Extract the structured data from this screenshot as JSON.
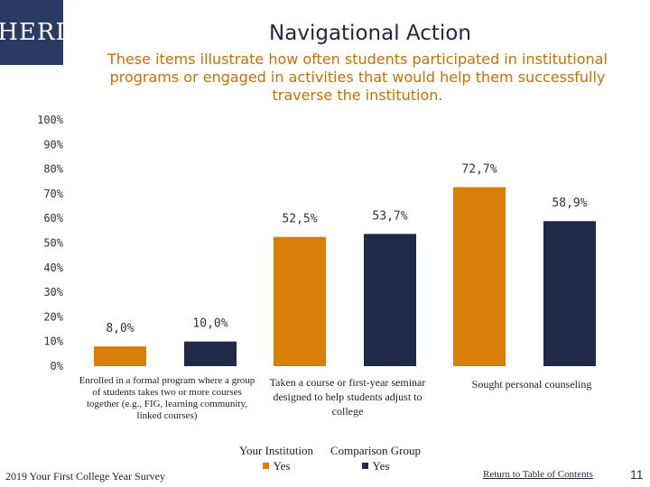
{
  "header": {
    "logo_text": "HERI",
    "title": "Navigational Action",
    "subtitle": "These items illustrate how often students participated in institutional programs or engaged in activities that would help them successfully traverse the institution."
  },
  "colors": {
    "your_institution": "#d97e06",
    "comparison_group": "#1e2a47",
    "title": "#1d2842",
    "subtitle": "#c86f05"
  },
  "chart_data": {
    "type": "bar",
    "title": "Navigational Action",
    "categories": [
      "Enrolled in a formal program where a group of students takes two or more courses together (e.g., FIG, learning community, linked courses)",
      "Taken a course or first-year seminar designed to help students adjust to college",
      "Sought personal counseling"
    ],
    "series": [
      {
        "name": "Your Institution",
        "legend_sub": "Yes",
        "values": [
          8.0,
          52.5,
          72.7
        ],
        "labels": [
          "8,0%",
          "52,5%",
          "72,7%"
        ]
      },
      {
        "name": "Comparison Group",
        "legend_sub": "Yes",
        "values": [
          10.0,
          53.7,
          58.9
        ],
        "labels": [
          "10,0%",
          "53,7%",
          "58,9%"
        ]
      }
    ],
    "ylim": [
      0,
      100
    ],
    "yticks": [
      "0%",
      "10%",
      "20%",
      "30%",
      "40%",
      "50%",
      "60%",
      "70%",
      "80%",
      "90%",
      "100%"
    ],
    "grid": false,
    "legend": "bottom-center"
  },
  "footer": {
    "survey": "2019 Your First College Year Survey",
    "link": "Return to Table of Contents",
    "page": "11"
  }
}
